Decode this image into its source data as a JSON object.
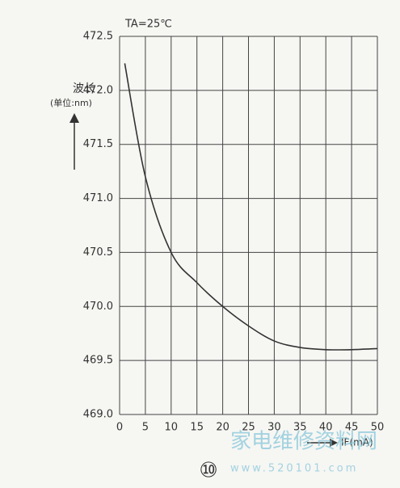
{
  "chart_data": {
    "type": "line",
    "annotation": "TA=25℃",
    "y_label": "波长",
    "y_unit": "(单位:nm)",
    "x_label": "IF(mA)",
    "figure_label": "⑩",
    "x": [
      1,
      5,
      10,
      15,
      20,
      25,
      30,
      35,
      40,
      45,
      50
    ],
    "series": [
      {
        "color": "#333333",
        "values": [
          472.25,
          471.2,
          470.5,
          470.22,
          470.0,
          469.82,
          469.68,
          469.62,
          469.6,
          469.6,
          469.61
        ]
      }
    ],
    "xlim": [
      0,
      50
    ],
    "xticks": [
      0,
      5,
      10,
      15,
      20,
      25,
      30,
      35,
      40,
      45,
      50
    ],
    "ylim": [
      469,
      472.5
    ],
    "yticks": [
      {
        "value": 469,
        "label": "469.0"
      },
      469.5,
      {
        "value": 470,
        "label": "470.0"
      },
      470.5,
      {
        "value": 471,
        "label": "471.0"
      },
      471.5,
      {
        "value": 472,
        "label": "472.0"
      },
      472.5
    ],
    "grid": true
  },
  "watermark": {
    "text": "家电维修资料网",
    "url": "www.520101.com"
  }
}
